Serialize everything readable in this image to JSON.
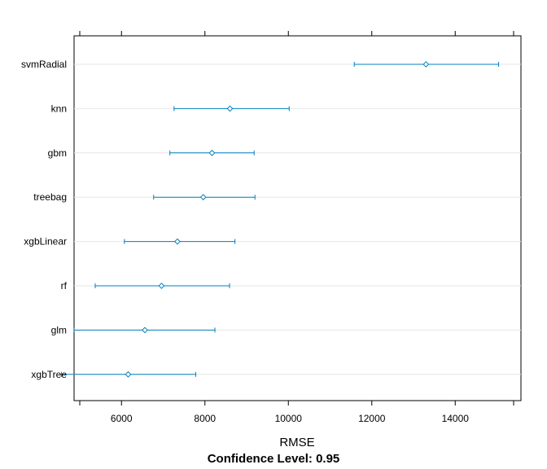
{
  "chart_data": {
    "type": "dotplot",
    "xlabel": "RMSE",
    "subtitle": "Confidence Level: 0.95",
    "xlim": [
      5000,
      15400
    ],
    "xticks": [
      6000,
      8000,
      10000,
      12000,
      14000
    ],
    "grid": true,
    "series_color": "#0080C0",
    "grid_color": "#e6e6e6",
    "categories": [
      "svmRadial",
      "knn",
      "gbm",
      "treebag",
      "xgbLinear",
      "rf",
      "glm",
      "xgbTree"
    ],
    "estimates": [
      13300,
      8600,
      8170,
      7960,
      7340,
      6960,
      6560,
      6160
    ],
    "lower": [
      11580,
      7260,
      7160,
      6770,
      6070,
      5370,
      4860,
      4560
    ],
    "upper": [
      15040,
      10020,
      9180,
      9200,
      8720,
      8590,
      8240,
      7780
    ]
  }
}
